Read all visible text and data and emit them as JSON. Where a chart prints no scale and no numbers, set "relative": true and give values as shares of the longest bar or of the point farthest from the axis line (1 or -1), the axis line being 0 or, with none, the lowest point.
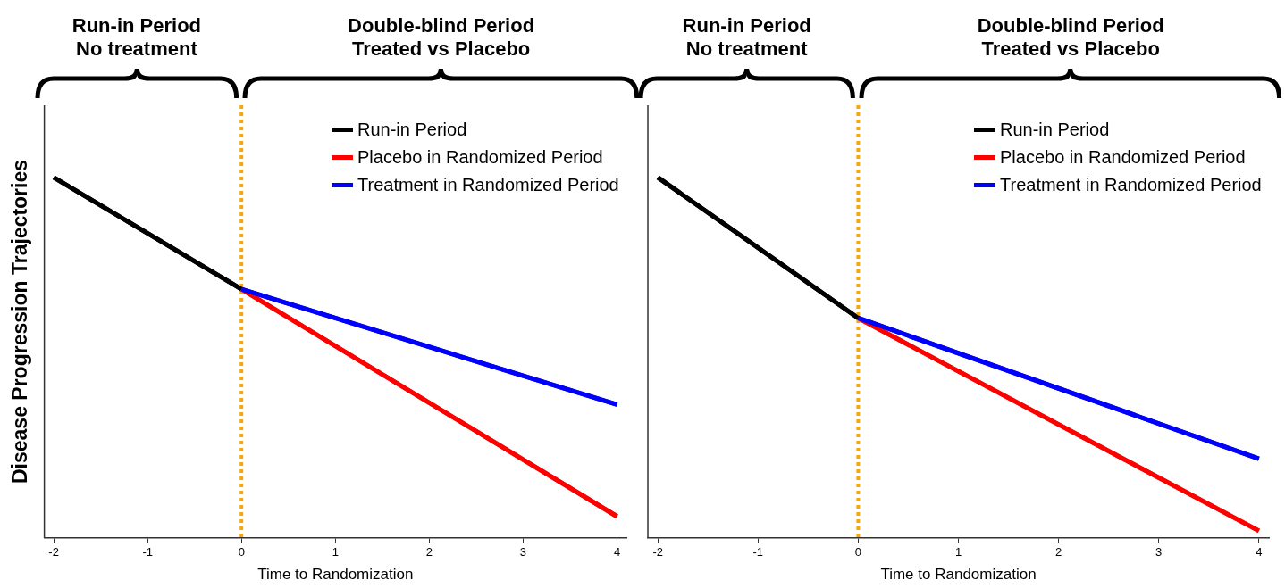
{
  "chart_data": [
    {
      "type": "line",
      "relative": true,
      "ylabel": "Disease Progression Trajectories",
      "xlabel": "Time to Randomization",
      "xlim": [
        -2.1,
        4.1
      ],
      "xticks": [
        -2,
        -1,
        0,
        1,
        2,
        3,
        4
      ],
      "legend": "top right",
      "marker": "none",
      "line_style": "solid",
      "grid": false,
      "annotations": [
        "Run-in Period\nNo treatment",
        "Double-blind Period\nTreated vs Placebo"
      ],
      "ref_lines": [
        {
          "axis": "x",
          "value": 0,
          "color": "#ffa500",
          "line_style": "dotted"
        }
      ],
      "series": [
        {
          "name": "Run-in Period",
          "color": "#000000",
          "x": [
            -2,
            0
          ],
          "values": [
            1,
            0.69
          ]
        },
        {
          "name": "Placebo in Randomized Period",
          "color": "#ff0000",
          "x": [
            0,
            4
          ],
          "values": [
            0.69,
            0.06
          ]
        },
        {
          "name": "Treatment in Randomized Period",
          "color": "#0000ff",
          "x": [
            0,
            4
          ],
          "values": [
            0.69,
            0.37
          ]
        }
      ]
    },
    {
      "type": "line",
      "relative": true,
      "xlabel": "Time to Randomization",
      "xlim": [
        -2.1,
        4.1
      ],
      "xticks": [
        -2,
        -1,
        0,
        1,
        2,
        3,
        4
      ],
      "legend": "top right",
      "marker": "none",
      "line_style": "solid",
      "grid": false,
      "annotations": [
        "Run-in Period\nNo treatment",
        "Double-blind Period\nTreated vs Placebo"
      ],
      "ref_lines": [
        {
          "axis": "x",
          "value": 0,
          "color": "#ffa500",
          "line_style": "dotted"
        }
      ],
      "series": [
        {
          "name": "Run-in Period",
          "color": "#000000",
          "x": [
            -2,
            0
          ],
          "values": [
            1,
            0.61
          ]
        },
        {
          "name": "Placebo in Randomized Period",
          "color": "#ff0000",
          "x": [
            0,
            4
          ],
          "values": [
            0.61,
            0.02
          ]
        },
        {
          "name": "Treatment in Randomized Period",
          "color": "#0000ff",
          "x": [
            0,
            4
          ],
          "values": [
            0.61,
            0.22
          ]
        }
      ]
    }
  ]
}
